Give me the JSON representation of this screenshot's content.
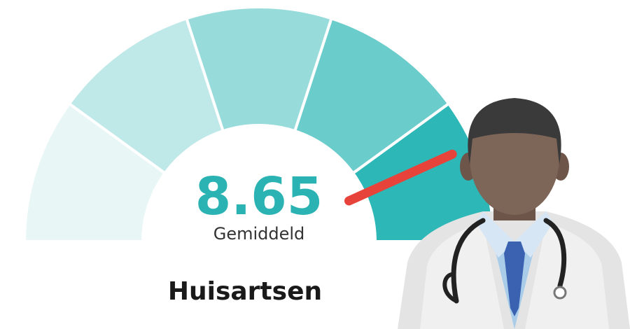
{
  "chart_data": {
    "type": "gauge",
    "title": "Huisartsen",
    "value": 8.65,
    "label": "Gemiddeld",
    "ylim": [
      0,
      10
    ],
    "band_colors": [
      "#e8f6f6",
      "#bfe8e8",
      "#97dcdb",
      "#6bcccc",
      "#2db7b7"
    ],
    "needle_color": "#e8433a",
    "value_color": "#2bb3b3"
  }
}
